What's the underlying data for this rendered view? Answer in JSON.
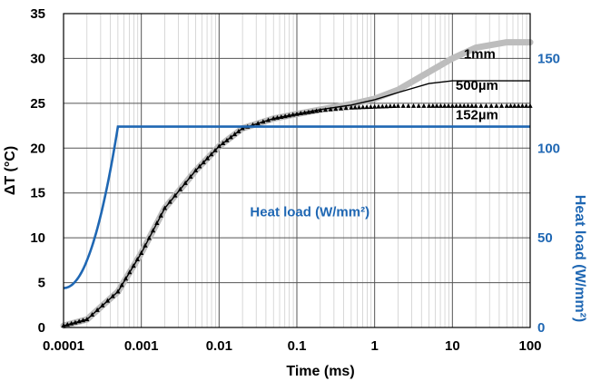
{
  "chart_data": {
    "type": "line",
    "xlabel": "Time (ms)",
    "ylabel": "ΔT (°C)",
    "y2label": "Heat load (W/mm²)",
    "x_scale": "log",
    "xlim": [
      0.0001,
      100
    ],
    "ylim": [
      0,
      35
    ],
    "y2lim": [
      0,
      175
    ],
    "grid": true,
    "x_ticks": [
      "0.0001",
      "0.001",
      "0.01",
      "0.1",
      "1",
      "10",
      "100"
    ],
    "x_tick_values": [
      0.0001,
      0.001,
      0.01,
      0.1,
      1,
      10,
      100
    ],
    "y_ticks": [
      "0",
      "5",
      "10",
      "15",
      "20",
      "25",
      "30",
      "35"
    ],
    "y_tick_values": [
      0,
      5,
      10,
      15,
      20,
      25,
      30,
      35
    ],
    "y2_ticks": [
      "0",
      "50",
      "100",
      "150"
    ],
    "y2_tick_values": [
      0,
      50,
      100,
      150
    ],
    "colors": {
      "heat": "#1f67b3",
      "t1mm": "#bdbdbd",
      "t500": "#000000",
      "t152": "#000000"
    },
    "series": [
      {
        "name": "1mm",
        "axis": "left",
        "style": "thick-gray",
        "x": [
          0.0001,
          0.0002,
          0.0005,
          0.001,
          0.002,
          0.005,
          0.01,
          0.02,
          0.05,
          0.1,
          0.2,
          0.5,
          1,
          2,
          5,
          10,
          20,
          50,
          100
        ],
        "y": [
          0.2,
          0.9,
          4.0,
          8.3,
          13.3,
          17.5,
          20.2,
          22.2,
          23.3,
          23.8,
          24.3,
          24.9,
          25.5,
          26.5,
          28.5,
          30.0,
          31.2,
          31.8,
          31.8
        ]
      },
      {
        "name": "500µm",
        "axis": "left",
        "style": "thin-black",
        "x": [
          0.0001,
          0.0002,
          0.0005,
          0.001,
          0.002,
          0.005,
          0.01,
          0.02,
          0.05,
          0.1,
          0.2,
          0.5,
          1,
          2,
          5,
          10,
          20,
          50,
          100
        ],
        "y": [
          0.2,
          0.9,
          4.0,
          8.3,
          13.3,
          17.5,
          20.2,
          22.2,
          23.3,
          23.8,
          24.3,
          24.8,
          25.4,
          26.2,
          27.2,
          27.5,
          27.5,
          27.5,
          27.5
        ]
      },
      {
        "name": "152µm",
        "axis": "left",
        "style": "triangles",
        "x": [
          0.0001,
          0.0002,
          0.0005,
          0.001,
          0.002,
          0.005,
          0.01,
          0.02,
          0.05,
          0.1,
          0.2,
          0.5,
          1,
          2,
          5,
          10,
          20,
          50,
          100
        ],
        "y": [
          0.2,
          0.9,
          4.0,
          8.3,
          13.3,
          17.5,
          20.2,
          22.2,
          23.3,
          23.8,
          24.2,
          24.5,
          24.6,
          24.7,
          24.7,
          24.7,
          24.7,
          24.7,
          24.7
        ]
      },
      {
        "name": "Heat load  (W/mm²)",
        "axis": "right",
        "style": "blue-line",
        "x": [
          0.0001,
          0.0002,
          0.0003,
          0.0004,
          0.0005,
          0.0005,
          100
        ],
        "y": [
          22,
          40,
          65,
          95,
          112,
          112,
          112
        ]
      }
    ],
    "annotations": [
      {
        "text": "1mm",
        "x": 14,
        "y": 30.0
      },
      {
        "text": "500µm",
        "x": 11,
        "y": 26.5
      },
      {
        "text": "152µm",
        "x": 11,
        "y": 23.2
      },
      {
        "text": "Heat load  (W/mm²)",
        "x": 0.025,
        "y": 12.4
      }
    ]
  }
}
